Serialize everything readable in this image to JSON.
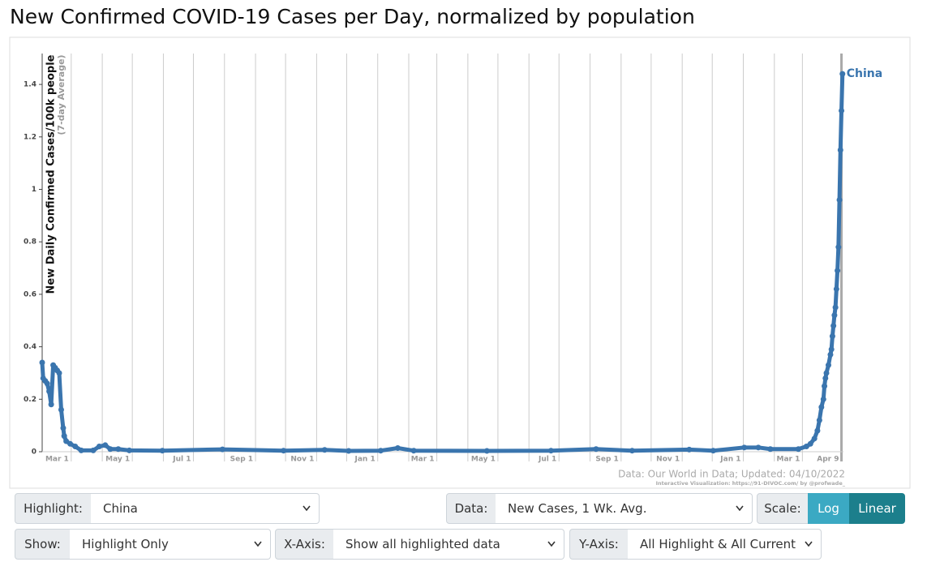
{
  "chart_data": {
    "type": "line",
    "title": "New Confirmed COVID-19 Cases per Day, normalized by population",
    "ylabel": "New Daily Confirmed Cases/100k people",
    "ylabel_note": "(7-day Average)",
    "x": [
      10,
      11,
      13,
      15,
      17,
      19,
      21,
      23,
      25,
      27,
      29,
      31,
      32,
      34,
      38,
      43,
      49,
      61,
      67,
      73,
      78,
      86,
      97,
      130,
      190,
      251,
      292,
      316,
      348,
      365,
      381,
      454,
      518,
      563,
      599,
      656,
      680,
      711,
      725,
      737,
      765,
      773,
      777,
      781,
      784,
      786,
      788,
      790,
      791,
      792,
      793,
      795,
      797,
      798,
      799,
      800,
      801,
      802,
      803,
      804,
      805,
      806,
      807,
      808,
      809
    ],
    "series": [
      {
        "name": "China",
        "color": "#3a75ae",
        "values": [
          0.34,
          0.28,
          0.27,
          0.26,
          0.23,
          0.18,
          0.33,
          0.32,
          0.31,
          0.3,
          0.16,
          0.09,
          0.06,
          0.04,
          0.03,
          0.02,
          0.005,
          0.005,
          0.02,
          0.025,
          0.01,
          0.01,
          0.005,
          0.004,
          0.009,
          0.004,
          0.007,
          0.003,
          0.004,
          0.014,
          0.004,
          0.003,
          0.004,
          0.01,
          0.004,
          0.008,
          0.004,
          0.016,
          0.016,
          0.01,
          0.01,
          0.02,
          0.03,
          0.05,
          0.08,
          0.12,
          0.17,
          0.2,
          0.25,
          0.28,
          0.3,
          0.33,
          0.37,
          0.39,
          0.44,
          0.48,
          0.52,
          0.55,
          0.62,
          0.69,
          0.78,
          0.96,
          1.15,
          1.3,
          1.44
        ]
      }
    ],
    "xlim": [
      10,
      810
    ],
    "xticks": [
      {
        "value": 39,
        "label": "Mar 1"
      },
      {
        "value": 100,
        "label": "May 1"
      },
      {
        "value": 161,
        "label": "Jul 1"
      },
      {
        "value": 223,
        "label": "Sep 1"
      },
      {
        "value": 284,
        "label": "Nov 1"
      },
      {
        "value": 345,
        "label": "Jan 1"
      },
      {
        "value": 404,
        "label": "Mar 1"
      },
      {
        "value": 465,
        "label": "May 1"
      },
      {
        "value": 526,
        "label": "Jul 1"
      },
      {
        "value": 588,
        "label": "Sep 1"
      },
      {
        "value": 649,
        "label": "Nov 1"
      },
      {
        "value": 710,
        "label": "Jan 1"
      },
      {
        "value": 769,
        "label": "Mar 1"
      },
      {
        "value": 808,
        "label": "Apr 9"
      }
    ],
    "xminorticks": [
      70,
      131,
      192,
      253,
      314,
      376,
      435,
      496,
      557,
      618,
      679,
      741
    ],
    "ylim": [
      0,
      1.5
    ],
    "yticks": [
      0,
      0.2,
      0.4,
      0.6,
      0.8,
      1,
      1.2,
      1.4
    ],
    "grid": true,
    "source": "Data: Our World in Data; Updated: 04/10/2022",
    "credit": "Interactive Visualization: https://91-DIVOC.com/ by @profwade_"
  },
  "controls": {
    "highlight": {
      "label": "Highlight:",
      "value": "China"
    },
    "data": {
      "label": "Data:",
      "value": "New Cases, 1 Wk. Avg."
    },
    "scale": {
      "label": "Scale:",
      "options": [
        "Log",
        "Linear"
      ]
    },
    "show": {
      "label": "Show:",
      "value": "Highlight Only"
    },
    "xaxis": {
      "label": "X-Axis:",
      "value": "Show all highlighted data"
    },
    "yaxis": {
      "label": "Y-Axis:",
      "value": "All Highlight & All Current"
    }
  }
}
